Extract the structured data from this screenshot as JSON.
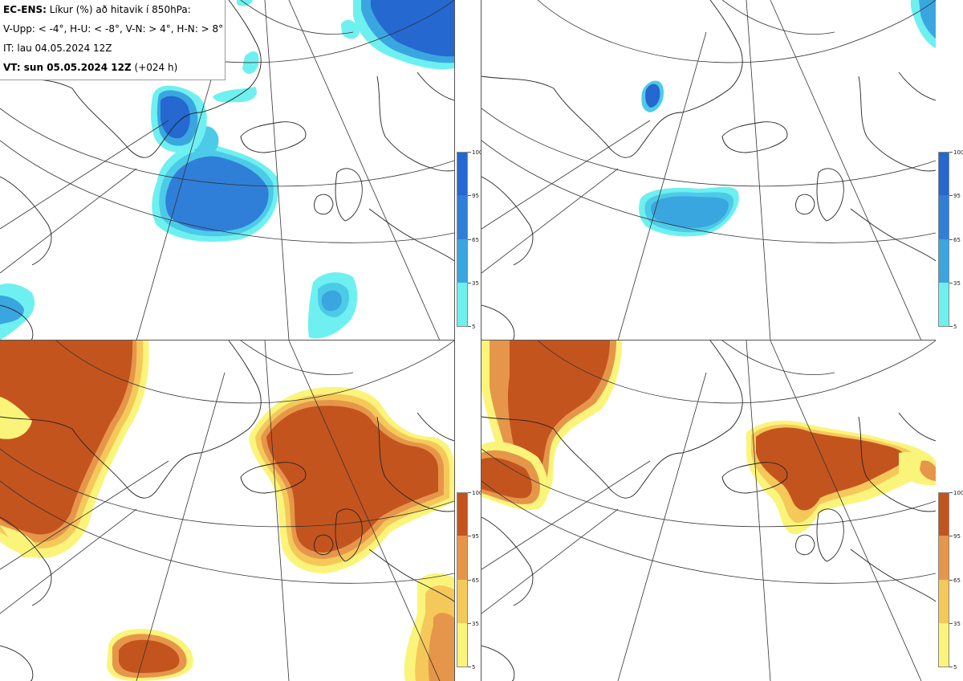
{
  "header": {
    "model_label": "EC-ENS:",
    "title_rest": "Líkur (%) að hitavik í 850hPa:",
    "thresholds": "V-Upp: < -4°, H-U: < -8°, V-N: > 4°, H-N: > 8°",
    "initial_time": "IT: lau 04.05.2024 12Z",
    "valid_label": "VT: sun 05.05.2024 12Z",
    "lead": "(+024 h)"
  },
  "colors": {
    "cold_scale": [
      "#6ef0f0",
      "#4ccbe8",
      "#3aa6e0",
      "#2f7fd8",
      "#2468d0"
    ],
    "warm_scale": [
      "#fbf47a",
      "#f5c85a",
      "#e6964a",
      "#d4713a",
      "#c4541e"
    ],
    "coast": "#222222",
    "grid": "#333333"
  },
  "panels": [
    {
      "id": "v-upp",
      "type": "cold",
      "threshold": "< -4°"
    },
    {
      "id": "h-u",
      "type": "cold",
      "threshold": "< -8°"
    },
    {
      "id": "v-n",
      "type": "warm",
      "threshold": "> 4°"
    },
    {
      "id": "h-n",
      "type": "warm",
      "threshold": "> 8°"
    }
  ],
  "colorbars": {
    "labels": [
      "100",
      "95",
      "65",
      "35",
      "5"
    ]
  }
}
